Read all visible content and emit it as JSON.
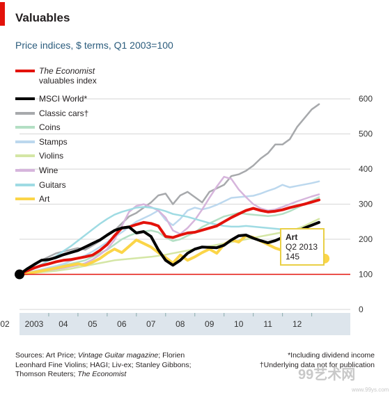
{
  "header": {
    "title": "Valuables",
    "subtitle": "Price indices, $ terms, Q1 2003=100"
  },
  "tooltip": {
    "name": "Art",
    "period": "Q2 2013",
    "value": "145"
  },
  "footer": {
    "sources_prefix": "Sources: Art Price; ",
    "sources_italic1": "Vintage Guitar magazine",
    "sources_mid": "; Florien Leonhard Fine Violins; HAGI; Liv-ex; Stanley Gibbons; Thomson Reuters; ",
    "sources_italic2": "The Economist",
    "note1": "*Including dividend income",
    "note2": "†Underlying data not for publication"
  },
  "watermark": {
    "main": "99艺术网",
    "sub": "www.99ys.com"
  },
  "colors": {
    "economist": "#e3120b",
    "msci": "#000000",
    "cars": "#a7a9ac",
    "coins": "#b3dfc4",
    "stamps": "#bcd8ee",
    "violins": "#d4e6a5",
    "wine": "#d6b5dc",
    "guitars": "#9fdbe3",
    "art": "#fbd548",
    "baseline": "#e3120b",
    "grid": "#d4d4d4",
    "axis": "#555555",
    "xband": "#dde5ec"
  },
  "chart_data": {
    "type": "line",
    "xlabel": "",
    "ylabel": "",
    "ylim": [
      0,
      600
    ],
    "y_ticks": [
      "0",
      "100",
      "200",
      "300",
      "400",
      "500",
      "600"
    ],
    "x_tick_labels": [
      "02",
      "2003",
      "04",
      "05",
      "06",
      "07",
      "08",
      "09",
      "10",
      "11",
      "12"
    ],
    "baseline": 100,
    "legend_position": "top-left",
    "x_quarters": [
      "Q1 2003",
      "Q2 2003",
      "Q3 2003",
      "Q4 2003",
      "Q1 2004",
      "Q2 2004",
      "Q3 2004",
      "Q4 2004",
      "Q1 2005",
      "Q2 2005",
      "Q3 2005",
      "Q4 2005",
      "Q1 2006",
      "Q2 2006",
      "Q3 2006",
      "Q4 2006",
      "Q1 2007",
      "Q2 2007",
      "Q3 2007",
      "Q4 2007",
      "Q1 2008",
      "Q2 2008",
      "Q3 2008",
      "Q4 2008",
      "Q1 2009",
      "Q2 2009",
      "Q3 2009",
      "Q4 2009",
      "Q1 2010",
      "Q2 2010",
      "Q3 2010",
      "Q4 2010",
      "Q1 2011",
      "Q2 2011",
      "Q3 2011",
      "Q4 2011",
      "Q1 2012",
      "Q2 2012",
      "Q3 2012",
      "Q4 2012",
      "Q1 2013",
      "Q2 2013"
    ],
    "series": [
      {
        "name": "Classic cars†",
        "color_key": "cars",
        "legend_index": 2,
        "values": [
          100,
          112,
          125,
          140,
          150,
          160,
          165,
          170,
          175,
          170,
          182,
          195,
          210,
          225,
          245,
          265,
          275,
          290,
          305,
          325,
          330,
          300,
          325,
          335,
          320,
          305,
          335,
          345,
          355,
          380,
          385,
          395,
          410,
          430,
          445,
          470,
          470,
          485,
          520,
          545,
          570,
          585
        ]
      },
      {
        "name": "Violins",
        "color_key": "violins",
        "legend_index": 5,
        "values": [
          100,
          102,
          104,
          106,
          108,
          110,
          113,
          116,
          120,
          124,
          128,
          132,
          136,
          140,
          142,
          144,
          146,
          148,
          150,
          153,
          156,
          160,
          164,
          168,
          172,
          176,
          180,
          184,
          188,
          192,
          196,
          200,
          204,
          208,
          212,
          216,
          220,
          224,
          230,
          238,
          248,
          258
        ]
      },
      {
        "name": "Coins",
        "color_key": "coins",
        "legend_index": 3,
        "values": [
          100,
          104,
          109,
          113,
          118,
          122,
          126,
          130,
          135,
          140,
          150,
          160,
          170,
          185,
          200,
          210,
          218,
          222,
          225,
          220,
          205,
          195,
          200,
          210,
          220,
          235,
          245,
          255,
          265,
          270,
          275,
          272,
          270,
          268,
          266,
          268,
          272,
          280,
          290,
          300,
          310,
          320
        ]
      },
      {
        "name": "Stamps",
        "color_key": "stamps",
        "legend_index": 4,
        "values": [
          100,
          104,
          109,
          114,
          119,
          124,
          130,
          138,
          146,
          154,
          165,
          178,
          192,
          206,
          220,
          235,
          250,
          260,
          270,
          282,
          255,
          240,
          258,
          282,
          290,
          285,
          290,
          298,
          308,
          318,
          320,
          322,
          324,
          330,
          338,
          345,
          355,
          348,
          352,
          356,
          360,
          365
        ]
      },
      {
        "name": "Wine",
        "color_key": "wine",
        "legend_index": 6,
        "values": [
          100,
          103,
          106,
          109,
          112,
          115,
          118,
          122,
          126,
          132,
          142,
          156,
          172,
          198,
          238,
          278,
          295,
          300,
          292,
          282,
          262,
          225,
          215,
          232,
          255,
          285,
          318,
          350,
          378,
          372,
          342,
          320,
          300,
          288,
          282,
          285,
          292,
          300,
          308,
          315,
          322,
          328
        ]
      },
      {
        "name": "Guitars",
        "color_key": "guitars",
        "legend_index": 7,
        "values": [
          100,
          108,
          118,
          128,
          140,
          152,
          166,
          180,
          196,
          212,
          228,
          244,
          258,
          270,
          278,
          284,
          290,
          292,
          290,
          286,
          280,
          272,
          268,
          264,
          258,
          252,
          246,
          242,
          238,
          236,
          236,
          238,
          236,
          234,
          232,
          230,
          228,
          226,
          225,
          224,
          222,
          220
        ]
      },
      {
        "name": "Art",
        "color_key": "art",
        "legend_index": 8,
        "values": [
          100,
          102,
          106,
          110,
          114,
          118,
          122,
          126,
          130,
          126,
          135,
          145,
          160,
          172,
          162,
          180,
          198,
          188,
          178,
          162,
          148,
          132,
          155,
          140,
          150,
          162,
          172,
          160,
          185,
          198,
          192,
          210,
          205,
          195,
          185,
          175,
          168,
          160,
          152,
          148,
          146,
          145
        ]
      },
      {
        "name": "The Economist valuables index",
        "color_key": "economist",
        "legend_index": 0,
        "values": [
          100,
          110,
          118,
          125,
          130,
          136,
          140,
          142,
          146,
          150,
          155,
          168,
          185,
          210,
          232,
          235,
          242,
          248,
          245,
          238,
          208,
          205,
          212,
          218,
          220,
          226,
          232,
          238,
          250,
          262,
          272,
          282,
          288,
          282,
          278,
          280,
          284,
          290,
          295,
          300,
          306,
          312
        ]
      },
      {
        "name": "MSCI World*",
        "color_key": "msci",
        "legend_index": 1,
        "values": [
          100,
          115,
          128,
          140,
          142,
          148,
          156,
          162,
          168,
          178,
          188,
          198,
          212,
          225,
          232,
          235,
          218,
          222,
          208,
          170,
          140,
          126,
          140,
          160,
          172,
          178,
          177,
          176,
          183,
          198,
          210,
          212,
          203,
          196,
          190,
          196,
          205,
          212,
          222,
          232,
          240,
          248
        ]
      }
    ]
  },
  "legend": [
    {
      "label_italic": "The Economist",
      "label_rest": "valuables index",
      "color_key": "economist"
    },
    {
      "label_italic": "",
      "label_rest": "MSCI World*",
      "color_key": "msci"
    },
    {
      "label_italic": "",
      "label_rest": "Classic cars†",
      "color_key": "cars"
    },
    {
      "label_italic": "",
      "label_rest": "Coins",
      "color_key": "coins"
    },
    {
      "label_italic": "",
      "label_rest": "Stamps",
      "color_key": "stamps"
    },
    {
      "label_italic": "",
      "label_rest": "Violins",
      "color_key": "violins"
    },
    {
      "label_italic": "",
      "label_rest": "Wine",
      "color_key": "wine"
    },
    {
      "label_italic": "",
      "label_rest": "Guitars",
      "color_key": "guitars"
    },
    {
      "label_italic": "",
      "label_rest": "Art",
      "color_key": "art"
    }
  ]
}
